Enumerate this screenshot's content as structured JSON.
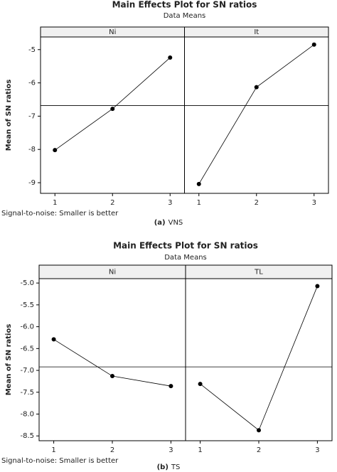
{
  "chart_data": [
    {
      "type": "line",
      "title": "Main Effects Plot for SN ratios",
      "subtitle": "Data Means",
      "ylabel": "Mean of SN ratios",
      "footnote": "Signal-to-noise: Smaller is better",
      "caption_label": "(a)",
      "caption_text": "VNS",
      "ylim": [
        -9.32,
        -4.62
      ],
      "yticks": [
        -9,
        -8,
        -7,
        -6,
        -5
      ],
      "mean_line": -6.68,
      "color": "#000000",
      "panels": [
        {
          "name": "Ni",
          "categories": [
            "1",
            "2",
            "3"
          ],
          "values": [
            -8.02,
            -6.78,
            -5.24
          ]
        },
        {
          "name": "It",
          "categories": [
            "1",
            "2",
            "3"
          ],
          "values": [
            -9.04,
            -6.13,
            -4.85
          ]
        }
      ]
    },
    {
      "type": "line",
      "title": "Main Effects Plot for SN ratios",
      "subtitle": "Data Means",
      "ylabel": "Mean of SN ratios",
      "footnote": "Signal-to-noise: Smaller is better",
      "caption_label": "(b)",
      "caption_text": "TS",
      "ylim": [
        -8.61,
        -4.9
      ],
      "yticks": [
        {
          "value": -8.5,
          "label": "-8.5"
        },
        {
          "value": -8,
          "label": "-8.0"
        },
        -7.5,
        {
          "value": -7,
          "label": "-7.0"
        },
        -6.5,
        {
          "value": -6,
          "label": "-6.0"
        },
        -5.5,
        {
          "value": -5,
          "label": "-5.0"
        }
      ],
      "mean_line": -6.92,
      "color": "#000000",
      "panels": [
        {
          "name": "Ni",
          "categories": [
            "1",
            "2",
            "3"
          ],
          "values": [
            -6.29,
            -7.13,
            -7.36
          ]
        },
        {
          "name": "TL",
          "categories": [
            "1",
            "2",
            "3"
          ],
          "values": [
            -7.31,
            -8.37,
            -5.07
          ]
        }
      ]
    }
  ]
}
